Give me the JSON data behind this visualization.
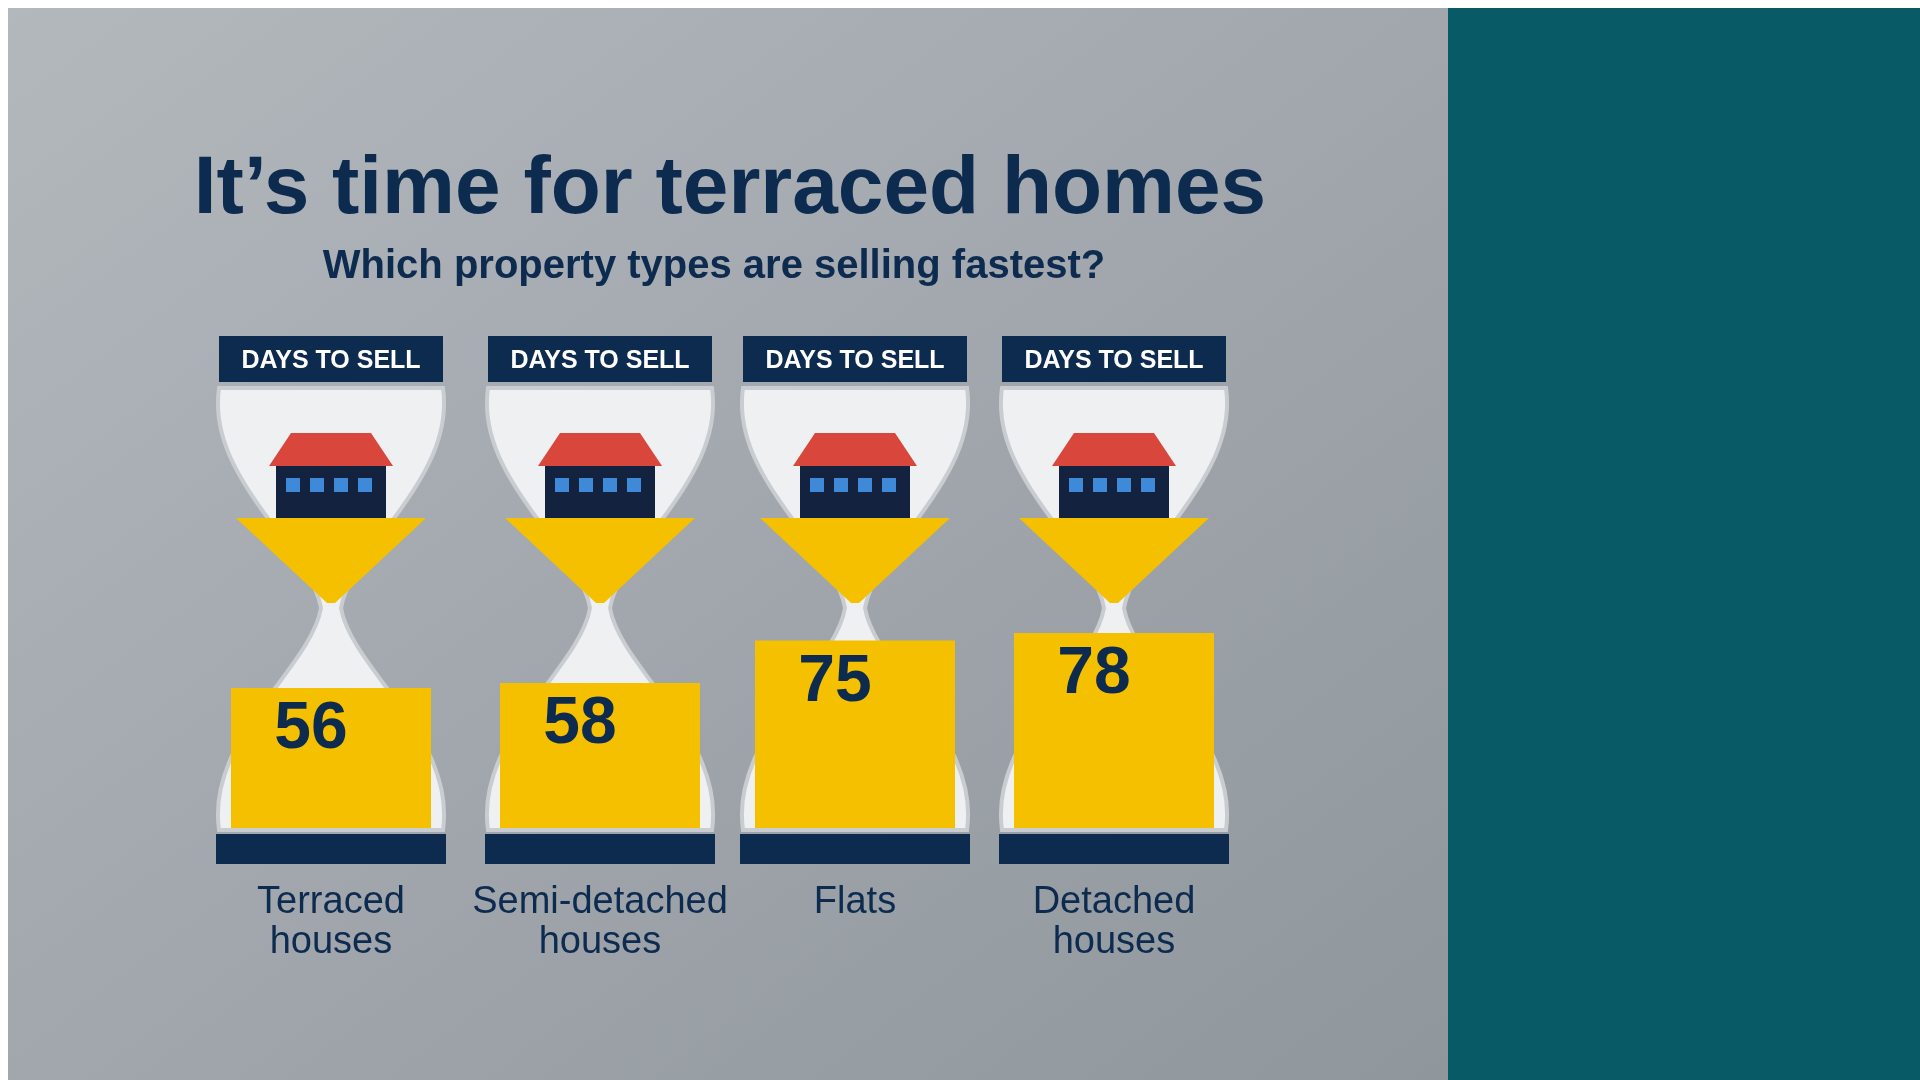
{
  "chart_data": {
    "type": "bar",
    "title": "It’s time for terraced homes",
    "subtitle": "Which property types are selling fastest?",
    "categories": [
      "Terraced houses",
      "Semi-detached houses",
      "Flats",
      "Detached houses"
    ],
    "values": [
      56,
      58,
      75,
      78
    ],
    "color": "#f5c000",
    "data_labels": true,
    "annotations": [
      "DAYS TO SELL",
      "DAYS TO SELL",
      "DAYS TO SELL",
      "DAYS TO SELL"
    ]
  }
}
